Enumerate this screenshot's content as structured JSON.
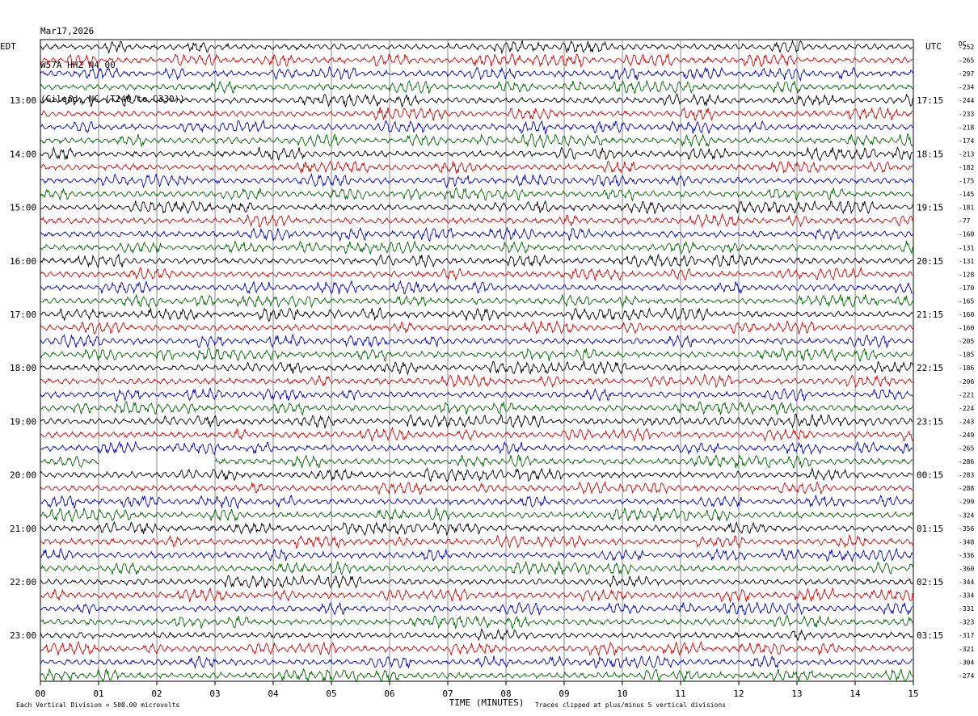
{
  "header": {
    "date": "Mar17,2026",
    "station": "W57A HHZ N4 00",
    "location": "(Gilead, NC (T240 to Q330))"
  },
  "chart_data": {
    "type": "line",
    "title": "W57A HHZ N4 00",
    "xlabel": "TIME (MINUTES)",
    "x_ticks": [
      "00",
      "01",
      "02",
      "03",
      "04",
      "05",
      "06",
      "07",
      "08",
      "09",
      "10",
      "11",
      "12",
      "13",
      "14",
      "15"
    ],
    "xlim": [
      0,
      15
    ],
    "left_axis_label": "EDT",
    "right_axis_label": "UTC",
    "dc_label": "DC",
    "left_hour_labels": [
      "13:00",
      "14:00",
      "15:00",
      "16:00",
      "17:00",
      "18:00",
      "19:00",
      "20:00",
      "21:00",
      "22:00",
      "23:00"
    ],
    "right_hour_labels": [
      "17:15",
      "18:15",
      "19:15",
      "20:15",
      "21:15",
      "22:15",
      "23:15",
      "00:15",
      "01:15",
      "02:15",
      "03:15"
    ],
    "dc_offsets": [
      "-252",
      "-265",
      "-297",
      "-234",
      "-244",
      "-233",
      "-218",
      "-174",
      "-213",
      "-182",
      "-175",
      "-145",
      "-181",
      "-77",
      "-160",
      "-131",
      "-131",
      "-128",
      "-170",
      "-165",
      "-160",
      "-160",
      "-205",
      "-185",
      "-186",
      "-206",
      "-221",
      "-224",
      "-243",
      "-249",
      "-265",
      "-286",
      "-283",
      "-288",
      "-299",
      "-324",
      "-356",
      "-348",
      "-336",
      "-360",
      "-344",
      "-334",
      "-331",
      "-323",
      "-317",
      "-321",
      "-304",
      "-274"
    ],
    "trace_colors": [
      "#000000",
      "#dd0000",
      "#0000cc",
      "#006600"
    ],
    "gap": {
      "row": 31,
      "start_min": 1.0,
      "end_min": 3.0
    },
    "footer_left": "Each Vertical Division =  500.00 microvolts",
    "footer_right": "Traces clipped at plus/minus 5 vertical divisions"
  }
}
